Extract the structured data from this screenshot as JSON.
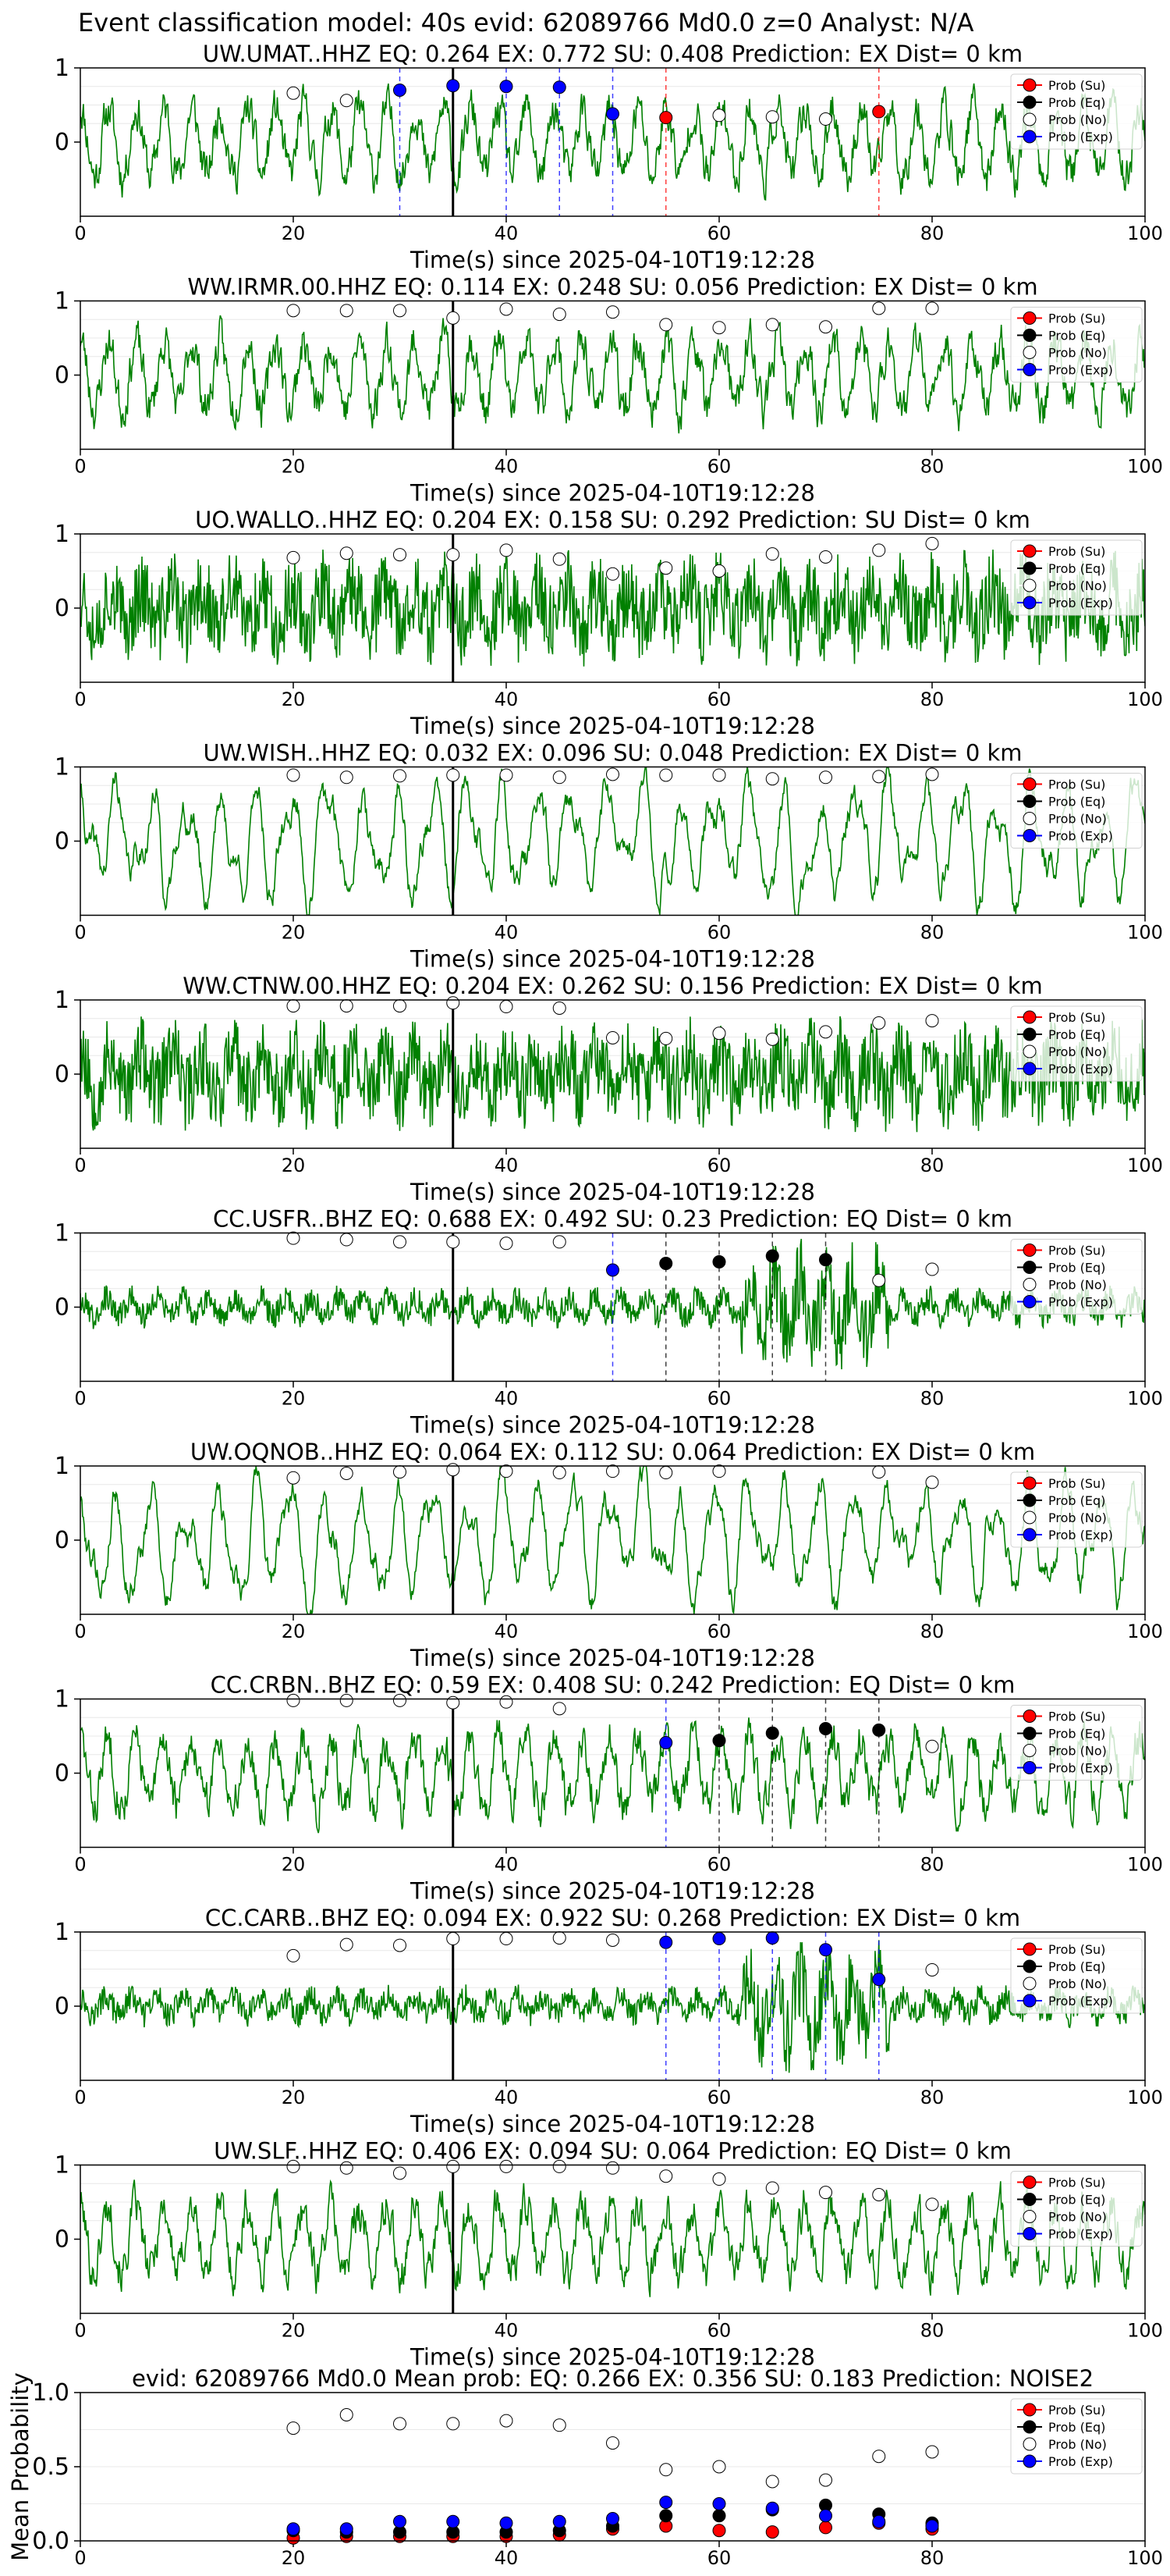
{
  "figure_title": "Event classification model: 40s evid: 62089766 Md0.0 z=0 Analyst: N/A",
  "colors": {
    "waveform": "#008000",
    "su": "#ff0000",
    "eq": "#000000",
    "no": "#ffffff",
    "exp": "#0000ff",
    "pick_line": "#000000"
  },
  "legend_labels": [
    "Prob (Su)",
    "Prob (Eq)",
    "Prob (No)",
    "Prob (Exp)"
  ],
  "xlabel": "Time(s) since 2025-04-10T19:12:28",
  "chart_data": [
    {
      "type": "line",
      "title": "UW.UMAT..HHZ   EQ: 0.264  EX: 0.772  SU: 0.408   Prediction: EX    Dist= 0 km",
      "xlim": [
        0,
        100
      ],
      "ylim": [
        -1,
        1
      ],
      "xticks": [
        0,
        20,
        40,
        60,
        80,
        100
      ],
      "yticks": [
        1,
        0
      ],
      "pick_time": 35,
      "waveform_style": "mid",
      "waveform_seed": 11,
      "points": [
        {
          "x": 20,
          "y": 0.66,
          "cls": "no"
        },
        {
          "x": 25,
          "y": 0.56,
          "cls": "no"
        },
        {
          "x": 30,
          "y": 0.7,
          "cls": "exp"
        },
        {
          "x": 35,
          "y": 0.76,
          "cls": "exp"
        },
        {
          "x": 40,
          "y": 0.75,
          "cls": "exp"
        },
        {
          "x": 45,
          "y": 0.74,
          "cls": "exp"
        },
        {
          "x": 50,
          "y": 0.38,
          "cls": "exp"
        },
        {
          "x": 55,
          "y": 0.33,
          "cls": "su"
        },
        {
          "x": 60,
          "y": 0.36,
          "cls": "no"
        },
        {
          "x": 65,
          "y": 0.34,
          "cls": "no"
        },
        {
          "x": 70,
          "y": 0.31,
          "cls": "no"
        },
        {
          "x": 75,
          "y": 0.41,
          "cls": "su"
        }
      ],
      "vlines": [
        {
          "x": 30,
          "cls": "exp"
        },
        {
          "x": 40,
          "cls": "exp"
        },
        {
          "x": 45,
          "cls": "exp"
        },
        {
          "x": 50,
          "cls": "exp"
        },
        {
          "x": 55,
          "cls": "su"
        },
        {
          "x": 75,
          "cls": "su"
        }
      ]
    },
    {
      "type": "line",
      "title": "WW.IRMR.00.HHZ   EQ: 0.114  EX: 0.248  SU: 0.056   Prediction: EX    Dist= 0 km",
      "xlim": [
        0,
        100
      ],
      "ylim": [
        -1,
        1
      ],
      "xticks": [
        0,
        20,
        40,
        60,
        80,
        100
      ],
      "yticks": [
        1,
        0
      ],
      "pick_time": 35,
      "waveform_style": "mid",
      "waveform_seed": 23,
      "points": [
        {
          "x": 20,
          "y": 0.87,
          "cls": "no"
        },
        {
          "x": 25,
          "y": 0.87,
          "cls": "no"
        },
        {
          "x": 30,
          "y": 0.87,
          "cls": "no"
        },
        {
          "x": 35,
          "y": 0.77,
          "cls": "no"
        },
        {
          "x": 40,
          "y": 0.89,
          "cls": "no"
        },
        {
          "x": 45,
          "y": 0.82,
          "cls": "no"
        },
        {
          "x": 50,
          "y": 0.85,
          "cls": "no"
        },
        {
          "x": 55,
          "y": 0.68,
          "cls": "no"
        },
        {
          "x": 60,
          "y": 0.64,
          "cls": "no"
        },
        {
          "x": 65,
          "y": 0.68,
          "cls": "no"
        },
        {
          "x": 70,
          "y": 0.65,
          "cls": "no"
        },
        {
          "x": 75,
          "y": 0.9,
          "cls": "no"
        },
        {
          "x": 80,
          "y": 0.9,
          "cls": "no"
        }
      ],
      "vlines": []
    },
    {
      "type": "line",
      "title": "UO.WALLO..HHZ   EQ: 0.204  EX: 0.158  SU: 0.292   Prediction: SU    Dist= 0 km",
      "xlim": [
        0,
        100
      ],
      "ylim": [
        -1,
        1
      ],
      "xticks": [
        0,
        20,
        40,
        60,
        80,
        100
      ],
      "yticks": [
        1,
        0
      ],
      "pick_time": 35,
      "waveform_style": "noisy",
      "waveform_seed": 37,
      "points": [
        {
          "x": 20,
          "y": 0.68,
          "cls": "no"
        },
        {
          "x": 25,
          "y": 0.74,
          "cls": "no"
        },
        {
          "x": 30,
          "y": 0.72,
          "cls": "no"
        },
        {
          "x": 35,
          "y": 0.72,
          "cls": "no"
        },
        {
          "x": 40,
          "y": 0.78,
          "cls": "no"
        },
        {
          "x": 45,
          "y": 0.66,
          "cls": "no"
        },
        {
          "x": 50,
          "y": 0.46,
          "cls": "no"
        },
        {
          "x": 55,
          "y": 0.54,
          "cls": "no"
        },
        {
          "x": 60,
          "y": 0.5,
          "cls": "no"
        },
        {
          "x": 65,
          "y": 0.73,
          "cls": "no"
        },
        {
          "x": 70,
          "y": 0.69,
          "cls": "no"
        },
        {
          "x": 75,
          "y": 0.78,
          "cls": "no"
        },
        {
          "x": 80,
          "y": 0.87,
          "cls": "no"
        }
      ],
      "vlines": []
    },
    {
      "type": "line",
      "title": "UW.WISH..HHZ   EQ: 0.032  EX: 0.096  SU: 0.048   Prediction: EX    Dist= 0 km",
      "xlim": [
        0,
        100
      ],
      "ylim": [
        -1,
        1
      ],
      "xticks": [
        0,
        20,
        40,
        60,
        80,
        100
      ],
      "yticks": [
        1,
        0
      ],
      "pick_time": 35,
      "waveform_style": "smooth",
      "waveform_seed": 41,
      "points": [
        {
          "x": 20,
          "y": 0.89,
          "cls": "no"
        },
        {
          "x": 25,
          "y": 0.86,
          "cls": "no"
        },
        {
          "x": 30,
          "y": 0.88,
          "cls": "no"
        },
        {
          "x": 35,
          "y": 0.89,
          "cls": "no"
        },
        {
          "x": 40,
          "y": 0.89,
          "cls": "no"
        },
        {
          "x": 45,
          "y": 0.86,
          "cls": "no"
        },
        {
          "x": 50,
          "y": 0.9,
          "cls": "no"
        },
        {
          "x": 55,
          "y": 0.89,
          "cls": "no"
        },
        {
          "x": 60,
          "y": 0.89,
          "cls": "no"
        },
        {
          "x": 65,
          "y": 0.84,
          "cls": "no"
        },
        {
          "x": 70,
          "y": 0.86,
          "cls": "no"
        },
        {
          "x": 75,
          "y": 0.87,
          "cls": "no"
        },
        {
          "x": 80,
          "y": 0.9,
          "cls": "no"
        }
      ],
      "vlines": []
    },
    {
      "type": "line",
      "title": "WW.CTNW.00.HHZ   EQ: 0.204  EX: 0.262  SU: 0.156   Prediction: EX    Dist= 0 km",
      "xlim": [
        0,
        100
      ],
      "ylim": [
        -1,
        1
      ],
      "xticks": [
        0,
        20,
        40,
        60,
        80,
        100
      ],
      "yticks": [
        1,
        0
      ],
      "pick_time": 35,
      "waveform_style": "noisy",
      "waveform_seed": 53,
      "points": [
        {
          "x": 20,
          "y": 0.92,
          "cls": "no"
        },
        {
          "x": 25,
          "y": 0.92,
          "cls": "no"
        },
        {
          "x": 30,
          "y": 0.92,
          "cls": "no"
        },
        {
          "x": 35,
          "y": 0.96,
          "cls": "no"
        },
        {
          "x": 40,
          "y": 0.91,
          "cls": "no"
        },
        {
          "x": 45,
          "y": 0.89,
          "cls": "no"
        },
        {
          "x": 50,
          "y": 0.49,
          "cls": "no"
        },
        {
          "x": 55,
          "y": 0.48,
          "cls": "no"
        },
        {
          "x": 60,
          "y": 0.55,
          "cls": "no"
        },
        {
          "x": 65,
          "y": 0.47,
          "cls": "no"
        },
        {
          "x": 70,
          "y": 0.57,
          "cls": "no"
        },
        {
          "x": 75,
          "y": 0.69,
          "cls": "no"
        },
        {
          "x": 80,
          "y": 0.72,
          "cls": "no"
        }
      ],
      "vlines": []
    },
    {
      "type": "line",
      "title": "CC.USFR..BHZ   EQ: 0.688  EX: 0.492  SU: 0.23    Prediction: EQ    Dist= 0 km",
      "xlim": [
        0,
        100
      ],
      "ylim": [
        -1,
        1
      ],
      "xticks": [
        0,
        20,
        40,
        60,
        80,
        100
      ],
      "yticks": [
        1,
        0
      ],
      "pick_time": 35,
      "waveform_style": "quiet",
      "waveform_seed": 67,
      "points": [
        {
          "x": 20,
          "y": 0.93,
          "cls": "no"
        },
        {
          "x": 25,
          "y": 0.91,
          "cls": "no"
        },
        {
          "x": 30,
          "y": 0.88,
          "cls": "no"
        },
        {
          "x": 35,
          "y": 0.88,
          "cls": "no"
        },
        {
          "x": 40,
          "y": 0.86,
          "cls": "no"
        },
        {
          "x": 45,
          "y": 0.88,
          "cls": "no"
        },
        {
          "x": 50,
          "y": 0.5,
          "cls": "exp"
        },
        {
          "x": 55,
          "y": 0.59,
          "cls": "eq"
        },
        {
          "x": 60,
          "y": 0.61,
          "cls": "eq"
        },
        {
          "x": 65,
          "y": 0.69,
          "cls": "eq"
        },
        {
          "x": 70,
          "y": 0.64,
          "cls": "eq"
        },
        {
          "x": 75,
          "y": 0.36,
          "cls": "no"
        },
        {
          "x": 80,
          "y": 0.51,
          "cls": "no"
        }
      ],
      "vlines": [
        {
          "x": 50,
          "cls": "exp"
        },
        {
          "x": 55,
          "cls": "eq"
        },
        {
          "x": 60,
          "cls": "eq"
        },
        {
          "x": 65,
          "cls": "eq"
        },
        {
          "x": 70,
          "cls": "eq"
        }
      ]
    },
    {
      "type": "line",
      "title": "UW.OQNOB..HHZ   EQ: 0.064  EX: 0.112  SU: 0.064   Prediction: EX    Dist= 0 km",
      "xlim": [
        0,
        100
      ],
      "ylim": [
        -1,
        1
      ],
      "xticks": [
        0,
        20,
        40,
        60,
        80,
        100
      ],
      "yticks": [
        1,
        0
      ],
      "pick_time": 35,
      "waveform_style": "smooth",
      "waveform_seed": 79,
      "points": [
        {
          "x": 20,
          "y": 0.84,
          "cls": "no"
        },
        {
          "x": 25,
          "y": 0.9,
          "cls": "no"
        },
        {
          "x": 30,
          "y": 0.92,
          "cls": "no"
        },
        {
          "x": 35,
          "y": 0.95,
          "cls": "no"
        },
        {
          "x": 40,
          "y": 0.93,
          "cls": "no"
        },
        {
          "x": 45,
          "y": 0.91,
          "cls": "no"
        },
        {
          "x": 50,
          "y": 0.93,
          "cls": "no"
        },
        {
          "x": 55,
          "y": 0.91,
          "cls": "no"
        },
        {
          "x": 60,
          "y": 0.93,
          "cls": "no"
        },
        {
          "x": 75,
          "y": 0.92,
          "cls": "no"
        },
        {
          "x": 80,
          "y": 0.78,
          "cls": "no"
        }
      ],
      "vlines": []
    },
    {
      "type": "line",
      "title": "CC.CRBN..BHZ   EQ: 0.59  EX: 0.408  SU: 0.242    Prediction: EQ    Dist= 0 km",
      "xlim": [
        0,
        100
      ],
      "ylim": [
        -1,
        1
      ],
      "xticks": [
        0,
        20,
        40,
        60,
        80,
        100
      ],
      "yticks": [
        1,
        0
      ],
      "pick_time": 35,
      "waveform_style": "mid",
      "waveform_seed": 83,
      "points": [
        {
          "x": 20,
          "y": 0.98,
          "cls": "no"
        },
        {
          "x": 25,
          "y": 0.98,
          "cls": "no"
        },
        {
          "x": 30,
          "y": 0.98,
          "cls": "no"
        },
        {
          "x": 35,
          "y": 0.95,
          "cls": "no"
        },
        {
          "x": 40,
          "y": 0.96,
          "cls": "no"
        },
        {
          "x": 45,
          "y": 0.87,
          "cls": "no"
        },
        {
          "x": 55,
          "y": 0.41,
          "cls": "exp"
        },
        {
          "x": 60,
          "y": 0.44,
          "cls": "eq"
        },
        {
          "x": 65,
          "y": 0.54,
          "cls": "eq"
        },
        {
          "x": 70,
          "y": 0.6,
          "cls": "eq"
        },
        {
          "x": 75,
          "y": 0.58,
          "cls": "eq"
        },
        {
          "x": 80,
          "y": 0.36,
          "cls": "no"
        }
      ],
      "vlines": [
        {
          "x": 55,
          "cls": "exp"
        },
        {
          "x": 60,
          "cls": "eq"
        },
        {
          "x": 65,
          "cls": "eq"
        },
        {
          "x": 70,
          "cls": "eq"
        },
        {
          "x": 75,
          "cls": "eq"
        }
      ]
    },
    {
      "type": "line",
      "title": "CC.CARB..BHZ   EQ: 0.094  EX: 0.922  SU: 0.268    Prediction: EX    Dist= 0 km",
      "xlim": [
        0,
        100
      ],
      "ylim": [
        -1,
        1
      ],
      "xticks": [
        0,
        20,
        40,
        60,
        80,
        100
      ],
      "yticks": [
        1,
        0
      ],
      "pick_time": 35,
      "waveform_style": "quiet",
      "waveform_seed": 97,
      "points": [
        {
          "x": 20,
          "y": 0.68,
          "cls": "no"
        },
        {
          "x": 25,
          "y": 0.83,
          "cls": "no"
        },
        {
          "x": 30,
          "y": 0.82,
          "cls": "no"
        },
        {
          "x": 35,
          "y": 0.91,
          "cls": "no"
        },
        {
          "x": 40,
          "y": 0.91,
          "cls": "no"
        },
        {
          "x": 45,
          "y": 0.92,
          "cls": "no"
        },
        {
          "x": 50,
          "y": 0.89,
          "cls": "no"
        },
        {
          "x": 55,
          "y": 0.86,
          "cls": "exp"
        },
        {
          "x": 60,
          "y": 0.91,
          "cls": "exp"
        },
        {
          "x": 65,
          "y": 0.92,
          "cls": "exp"
        },
        {
          "x": 70,
          "y": 0.76,
          "cls": "exp"
        },
        {
          "x": 75,
          "y": 0.36,
          "cls": "exp"
        },
        {
          "x": 80,
          "y": 0.49,
          "cls": "no"
        }
      ],
      "vlines": [
        {
          "x": 55,
          "cls": "exp"
        },
        {
          "x": 60,
          "cls": "exp"
        },
        {
          "x": 65,
          "cls": "exp"
        },
        {
          "x": 70,
          "cls": "exp"
        },
        {
          "x": 75,
          "cls": "exp"
        }
      ]
    },
    {
      "type": "line",
      "title": "UW.SLF..HHZ   EQ: 0.406  EX: 0.094  SU: 0.064   Prediction: EQ    Dist= 0 km",
      "xlim": [
        0,
        100
      ],
      "ylim": [
        -1,
        1
      ],
      "xticks": [
        0,
        20,
        40,
        60,
        80,
        100
      ],
      "yticks": [
        1,
        0
      ],
      "pick_time": 35,
      "waveform_style": "mid",
      "waveform_seed": 101,
      "points": [
        {
          "x": 20,
          "y": 0.98,
          "cls": "no"
        },
        {
          "x": 25,
          "y": 0.96,
          "cls": "no"
        },
        {
          "x": 30,
          "y": 0.89,
          "cls": "no"
        },
        {
          "x": 35,
          "y": 0.98,
          "cls": "no"
        },
        {
          "x": 40,
          "y": 0.98,
          "cls": "no"
        },
        {
          "x": 45,
          "y": 0.98,
          "cls": "no"
        },
        {
          "x": 50,
          "y": 0.96,
          "cls": "no"
        },
        {
          "x": 55,
          "y": 0.85,
          "cls": "no"
        },
        {
          "x": 60,
          "y": 0.81,
          "cls": "no"
        },
        {
          "x": 65,
          "y": 0.69,
          "cls": "no"
        },
        {
          "x": 70,
          "y": 0.63,
          "cls": "no"
        },
        {
          "x": 75,
          "y": 0.6,
          "cls": "no"
        },
        {
          "x": 80,
          "y": 0.47,
          "cls": "no"
        }
      ],
      "vlines": []
    },
    {
      "type": "scatter",
      "title": "evid: 62089766  Md0.0   Mean prob:   EQ: 0.266  EX: 0.356  SU: 0.183   Prediction: NOISE2",
      "ylabel": "Mean Probability",
      "xlim": [
        0,
        100
      ],
      "ylim": [
        0,
        1
      ],
      "xticks": [
        0,
        20,
        40,
        60,
        80,
        100
      ],
      "yticks": [
        0.0,
        0.5,
        1.0
      ],
      "x": [
        20,
        25,
        30,
        35,
        40,
        45,
        50,
        55,
        60,
        65,
        70,
        75,
        80
      ],
      "series": [
        {
          "name": "Prob (Su)",
          "cls": "su",
          "values": [
            0.02,
            0.03,
            0.03,
            0.03,
            0.03,
            0.04,
            0.08,
            0.1,
            0.07,
            0.06,
            0.09,
            0.12,
            0.08
          ]
        },
        {
          "name": "Prob (Eq)",
          "cls": "eq",
          "values": [
            0.07,
            0.06,
            0.06,
            0.06,
            0.06,
            0.07,
            0.1,
            0.17,
            0.17,
            0.21,
            0.24,
            0.18,
            0.12
          ]
        },
        {
          "name": "Prob (No)",
          "cls": "no",
          "values": [
            0.76,
            0.85,
            0.79,
            0.79,
            0.81,
            0.78,
            0.66,
            0.48,
            0.5,
            0.4,
            0.41,
            0.57,
            0.6
          ]
        },
        {
          "name": "Prob (Exp)",
          "cls": "exp",
          "values": [
            0.08,
            0.08,
            0.13,
            0.13,
            0.12,
            0.13,
            0.15,
            0.26,
            0.25,
            0.22,
            0.17,
            0.13,
            0.1
          ]
        }
      ]
    }
  ]
}
